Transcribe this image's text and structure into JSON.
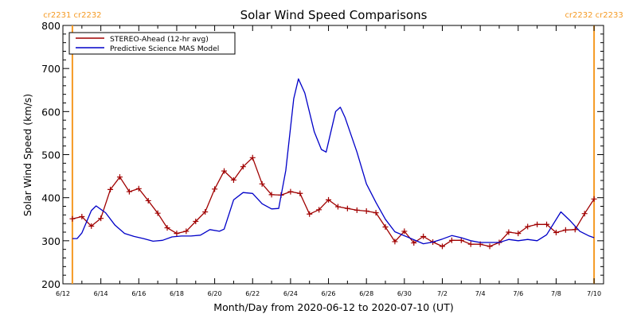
{
  "chart_data": {
    "type": "line",
    "title": "Solar Wind Speed Comparisons",
    "xlabel": "Month/Day from 2020-06-12 to 2020-07-10 (UT)",
    "ylabel": "Solar Wind Speed (km/s)",
    "xlim": [
      "2020-06-12",
      "2020-07-10"
    ],
    "ylim": [
      200,
      800
    ],
    "grid": false,
    "legend_position": "top-left",
    "x_ticks": [
      "6/12",
      "6/14",
      "6/16",
      "6/18",
      "6/20",
      "6/22",
      "6/24",
      "6/26",
      "6/28",
      "6/30",
      "7/2",
      "7/4",
      "7/6",
      "7/8",
      "7/10"
    ],
    "y_ticks": [
      "200",
      "300",
      "400",
      "500",
      "600",
      "700",
      "800"
    ],
    "colors": {
      "stereo": "#a00000",
      "mas": "#0000c8",
      "rotation_marker": "#f59a23",
      "axis": "#000000"
    },
    "series": [
      {
        "name": "STEREO-Ahead (12-hr avg)",
        "marker": "plus",
        "points": [
          [
            "2020-06-12T12:00",
            351
          ],
          [
            "2020-06-13T00:00",
            356
          ],
          [
            "2020-06-13T12:00",
            334
          ],
          [
            "2020-06-14T00:00",
            352
          ],
          [
            "2020-06-14T12:00",
            419
          ],
          [
            "2020-06-15T00:00",
            448
          ],
          [
            "2020-06-15T12:00",
            414
          ],
          [
            "2020-06-16T00:00",
            421
          ],
          [
            "2020-06-16T12:00",
            393
          ],
          [
            "2020-06-17T00:00",
            364
          ],
          [
            "2020-06-17T12:00",
            330
          ],
          [
            "2020-06-18T00:00",
            317
          ],
          [
            "2020-06-18T12:00",
            322
          ],
          [
            "2020-06-19T00:00",
            345
          ],
          [
            "2020-06-19T12:00",
            367
          ],
          [
            "2020-06-20T00:00",
            420
          ],
          [
            "2020-06-20T12:00",
            462
          ],
          [
            "2020-06-21T00:00",
            441
          ],
          [
            "2020-06-21T12:00",
            472
          ],
          [
            "2020-06-22T00:00",
            493
          ],
          [
            "2020-06-22T12:00",
            432
          ],
          [
            "2020-06-23T00:00",
            407
          ],
          [
            "2020-06-23T12:00",
            406
          ],
          [
            "2020-06-24T00:00",
            414
          ],
          [
            "2020-06-24T12:00",
            410
          ],
          [
            "2020-06-25T00:00",
            362
          ],
          [
            "2020-06-25T12:00",
            372
          ],
          [
            "2020-06-26T00:00",
            395
          ],
          [
            "2020-06-26T12:00",
            379
          ],
          [
            "2020-06-27T00:00",
            375
          ],
          [
            "2020-06-27T12:00",
            371
          ],
          [
            "2020-06-28T00:00",
            369
          ],
          [
            "2020-06-28T12:00",
            365
          ],
          [
            "2020-06-29T00:00",
            332
          ],
          [
            "2020-06-29T12:00",
            298
          ],
          [
            "2020-06-30T00:00",
            322
          ],
          [
            "2020-06-30T12:00",
            295
          ],
          [
            "2020-07-01T00:00",
            310
          ],
          [
            "2020-07-01T12:00",
            297
          ],
          [
            "2020-07-02T00:00",
            287
          ],
          [
            "2020-07-02T12:00",
            301
          ],
          [
            "2020-07-03T00:00",
            301
          ],
          [
            "2020-07-03T12:00",
            292
          ],
          [
            "2020-07-04T00:00",
            292
          ],
          [
            "2020-07-04T12:00",
            287
          ],
          [
            "2020-07-05T00:00",
            296
          ],
          [
            "2020-07-05T12:00",
            320
          ],
          [
            "2020-07-06T00:00",
            317
          ],
          [
            "2020-07-06T12:00",
            333
          ],
          [
            "2020-07-07T00:00",
            338
          ],
          [
            "2020-07-07T12:00",
            338
          ],
          [
            "2020-07-08T00:00",
            319
          ],
          [
            "2020-07-08T12:00",
            325
          ],
          [
            "2020-07-09T00:00",
            326
          ],
          [
            "2020-07-09T12:00",
            363
          ],
          [
            "2020-07-10T00:00",
            397
          ]
        ]
      },
      {
        "name": "Predictive Science MAS Model",
        "marker": "none",
        "points": [
          [
            "2020-06-12T12:00",
            305
          ],
          [
            "2020-06-12T18:00",
            305
          ],
          [
            "2020-06-13T00:00",
            318
          ],
          [
            "2020-06-13T12:00",
            370
          ],
          [
            "2020-06-13T18:00",
            381
          ],
          [
            "2020-06-14T06:00",
            365
          ],
          [
            "2020-06-14T18:00",
            336
          ],
          [
            "2020-06-15T06:00",
            317
          ],
          [
            "2020-06-15T18:00",
            310
          ],
          [
            "2020-06-16T06:00",
            305
          ],
          [
            "2020-06-16T18:00",
            299
          ],
          [
            "2020-06-17T06:00",
            301
          ],
          [
            "2020-06-17T18:00",
            309
          ],
          [
            "2020-06-18T06:00",
            311
          ],
          [
            "2020-06-18T18:00",
            311
          ],
          [
            "2020-06-19T06:00",
            313
          ],
          [
            "2020-06-19T18:00",
            326
          ],
          [
            "2020-06-20T06:00",
            322
          ],
          [
            "2020-06-20T12:00",
            327
          ],
          [
            "2020-06-21T00:00",
            395
          ],
          [
            "2020-06-21T12:00",
            412
          ],
          [
            "2020-06-22T00:00",
            410
          ],
          [
            "2020-06-22T12:00",
            386
          ],
          [
            "2020-06-23T00:00",
            374
          ],
          [
            "2020-06-23T09:00",
            375
          ],
          [
            "2020-06-23T18:00",
            463
          ],
          [
            "2020-06-24T04:00",
            630
          ],
          [
            "2020-06-24T10:00",
            676
          ],
          [
            "2020-06-24T18:00",
            643
          ],
          [
            "2020-06-25T06:00",
            553
          ],
          [
            "2020-06-25T15:00",
            512
          ],
          [
            "2020-06-25T21:00",
            506
          ],
          [
            "2020-06-26T09:00",
            600
          ],
          [
            "2020-06-26T15:00",
            610
          ],
          [
            "2020-06-26T21:00",
            586
          ],
          [
            "2020-06-27T12:00",
            506
          ],
          [
            "2020-06-28T00:00",
            432
          ],
          [
            "2020-06-28T12:00",
            389
          ],
          [
            "2020-06-29T00:00",
            350
          ],
          [
            "2020-06-29T12:00",
            321
          ],
          [
            "2020-07-01T00:00",
            293
          ],
          [
            "2020-07-01T12:00",
            297
          ],
          [
            "2020-07-02T00:00",
            304
          ],
          [
            "2020-07-02T12:00",
            312
          ],
          [
            "2020-07-03T00:00",
            307
          ],
          [
            "2020-07-03T12:00",
            300
          ],
          [
            "2020-07-04T00:00",
            296
          ],
          [
            "2020-07-05T00:00",
            296
          ],
          [
            "2020-07-05T12:00",
            303
          ],
          [
            "2020-07-06T00:00",
            300
          ],
          [
            "2020-07-06T12:00",
            303
          ],
          [
            "2020-07-07T00:00",
            300
          ],
          [
            "2020-07-07T12:00",
            314
          ],
          [
            "2020-07-08T06:00",
            367
          ],
          [
            "2020-07-08T18:00",
            346
          ],
          [
            "2020-07-09T06:00",
            322
          ],
          [
            "2020-07-09T18:00",
            311
          ],
          [
            "2020-07-10T00:00",
            307
          ]
        ]
      }
    ],
    "rotation_markers": [
      {
        "date": "2020-06-12T12:00",
        "label": "cr2231 cr2232"
      },
      {
        "date": "2020-07-10T00:00",
        "label": "cr2232 cr2233"
      }
    ]
  }
}
